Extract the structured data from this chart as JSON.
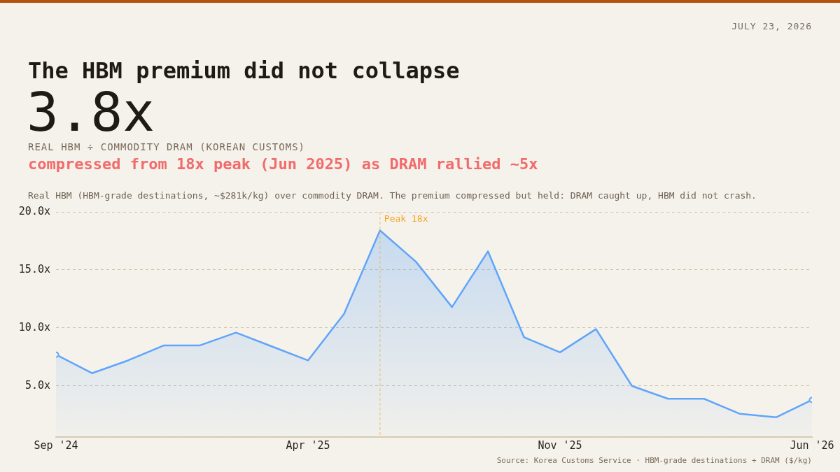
{
  "chart_data": {
    "type": "area",
    "title": "The HBM premium did not collapse",
    "subtitle": "REAL HBM ÷ COMMODITY DRAM (KOREAN CUSTOMS)",
    "annotations": [
      "JULY 23, 2026",
      "3.8x",
      "compressed from 18x peak (Jun 2025) as DRAM rallied ~5x",
      "Real HBM (HBM-grade destinations, ~$281k/kg) over commodity DRAM. The premium compressed but held: DRAM caught up, HBM did not crash.",
      "Source: Korea Customs Service · HBM-grade destinations ÷ DRAM ($/kg)"
    ],
    "x": [
      "2024-09",
      "2024-10",
      "2024-11",
      "2024-12",
      "2025-01",
      "2025-02",
      "2025-03",
      "2025-04",
      "2025-05",
      "2025-06",
      "2025-07",
      "2025-08",
      "2025-09",
      "2025-10",
      "2025-11",
      "2025-12",
      "2026-01",
      "2026-02",
      "2026-03",
      "2026-04",
      "2026-05",
      "2026-06"
    ],
    "series": [
      {
        "color": "#60a5fa",
        "values": [
          7.7,
          6.1,
          7.2,
          8.5,
          8.5,
          9.6,
          8.4,
          7.2,
          11.2,
          18.4,
          15.7,
          11.8,
          16.6,
          9.2,
          7.9,
          9.9,
          5.0,
          3.9,
          3.9,
          2.6,
          2.3,
          3.8
        ]
      }
    ],
    "xlim": [
      "2024-09",
      "2026-06"
    ],
    "xticks": [
      {
        "value": "2024-09",
        "label": "Sep '24"
      },
      {
        "value": "2025-04",
        "label": "Apr '25"
      },
      {
        "value": "2025-11",
        "label": "Nov '25"
      },
      {
        "value": "2026-06",
        "label": "Jun '26"
      }
    ],
    "ylim": [
      0.6,
      20
    ],
    "yticks": [
      {
        "value": 5,
        "label": "5.0x"
      },
      {
        "value": 10,
        "label": "10.0x"
      },
      {
        "value": 15,
        "label": "15.0x"
      },
      {
        "value": 20,
        "label": "20.0x"
      }
    ],
    "grid": "y",
    "legend": false,
    "ref_lines": [
      {
        "axis": "x",
        "value": "2025-06",
        "label": "Peak 18x",
        "color": "#f5a623",
        "line_style": "dashed"
      }
    ]
  }
}
